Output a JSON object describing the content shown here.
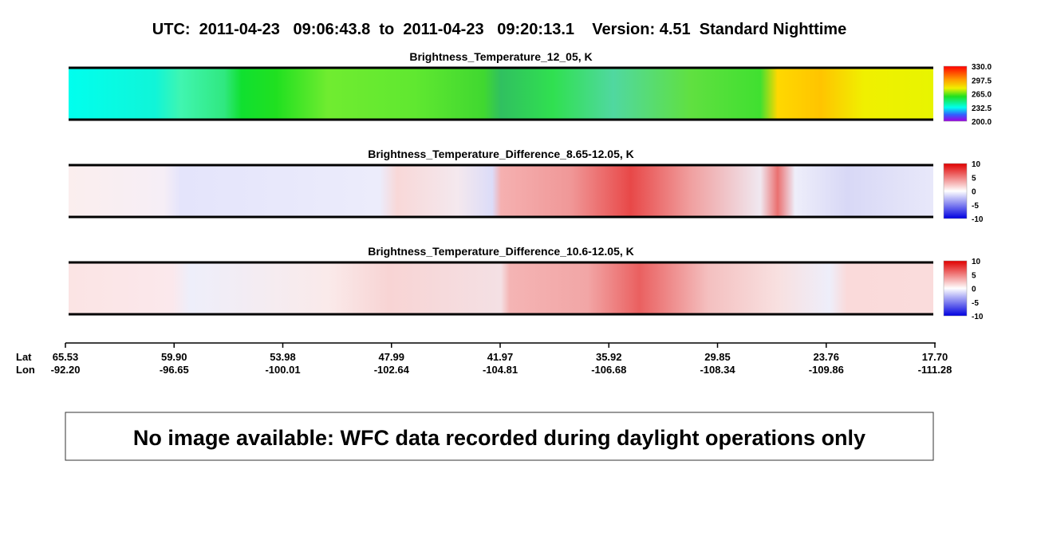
{
  "header": {
    "title": "UTC:  2011-04-23   09:06:43.8  to  2011-04-23   09:20:13.1    Version: 4.51  Standard Nighttime"
  },
  "panels": [
    {
      "title": "Brightness_Temperature_12_05, K",
      "colorbar": [
        "330.0",
        "297.5",
        "265.0",
        "232.5",
        "200.0"
      ]
    },
    {
      "title": "Brightness_Temperature_Difference_8.65-12.05, K",
      "colorbar": [
        "10",
        "5",
        "0",
        "-5",
        "-10"
      ]
    },
    {
      "title": "Brightness_Temperature_Difference_10.6-12.05, K",
      "colorbar": [
        "10",
        "5",
        "0",
        "-5",
        "-10"
      ]
    }
  ],
  "axis": {
    "row_labels": [
      "Lat",
      "Lon"
    ],
    "ticks": [
      {
        "lat": "65.53",
        "lon": "-92.20"
      },
      {
        "lat": "59.90",
        "lon": "-96.65"
      },
      {
        "lat": "53.98",
        "lon": "-100.01"
      },
      {
        "lat": "47.99",
        "lon": "-102.64"
      },
      {
        "lat": "41.97",
        "lon": "-104.81"
      },
      {
        "lat": "35.92",
        "lon": "-106.68"
      },
      {
        "lat": "29.85",
        "lon": "-108.34"
      },
      {
        "lat": "23.76",
        "lon": "-109.86"
      },
      {
        "lat": "17.70",
        "lon": "-111.28"
      }
    ]
  },
  "notice": "No image available: WFC data recorded during daylight operations only"
}
